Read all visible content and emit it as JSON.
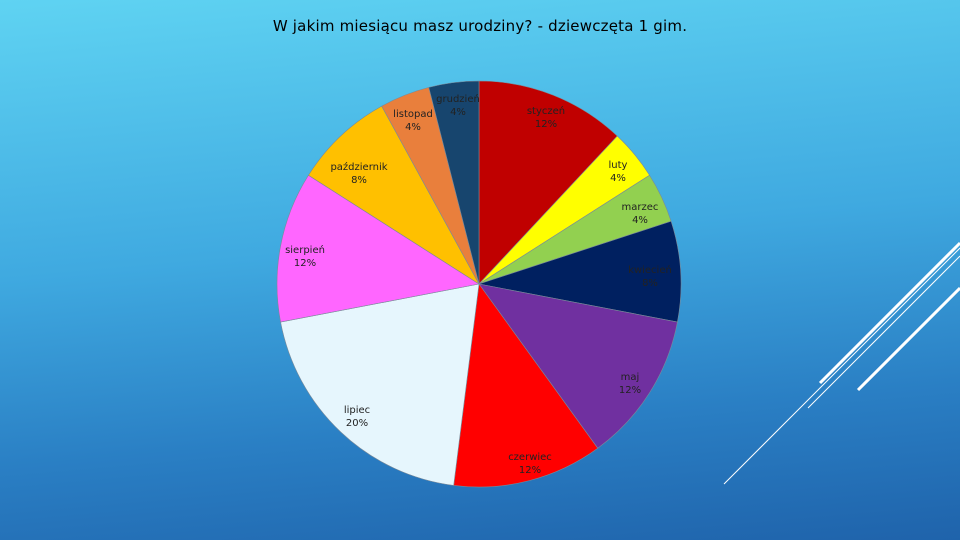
{
  "title": "W jakim miesiącu masz urodziny? - dziewczęta 1 gim.",
  "chart_data": {
    "type": "pie",
    "title": "W jakim miesiącu masz urodziny? - dziewczęta 1 gim.",
    "slices": [
      {
        "label": "styczeń",
        "value": 12,
        "display": "12%",
        "color": "#c00000"
      },
      {
        "label": "luty",
        "value": 4,
        "display": "4%",
        "color": "#ffff00"
      },
      {
        "label": "marzec",
        "value": 4,
        "display": "4%",
        "color": "#92d050"
      },
      {
        "label": "kwiecień",
        "value": 8,
        "display": "8%",
        "color": "#002060"
      },
      {
        "label": "maj",
        "value": 12,
        "display": "12%",
        "color": "#7030a0"
      },
      {
        "label": "czerwiec",
        "value": 12,
        "display": "12%",
        "color": "#ff0000"
      },
      {
        "label": "lipiec",
        "value": 20,
        "display": "20%",
        "color": "#e6f6fd"
      },
      {
        "label": "sierpień",
        "value": 12,
        "display": "12%",
        "color": "#ff66ff"
      },
      {
        "label": "październik",
        "value": 8,
        "display": "8%",
        "color": "#ffc000"
      },
      {
        "label": "listopad",
        "value": 4,
        "display": "4%",
        "color": "#e97f3c"
      },
      {
        "label": "grudzień",
        "value": 4,
        "display": "4%",
        "color": "#17456e"
      }
    ],
    "start": "12 o'clock",
    "direction": "clockwise",
    "legend": "none",
    "data_labels": "category and percentage"
  }
}
